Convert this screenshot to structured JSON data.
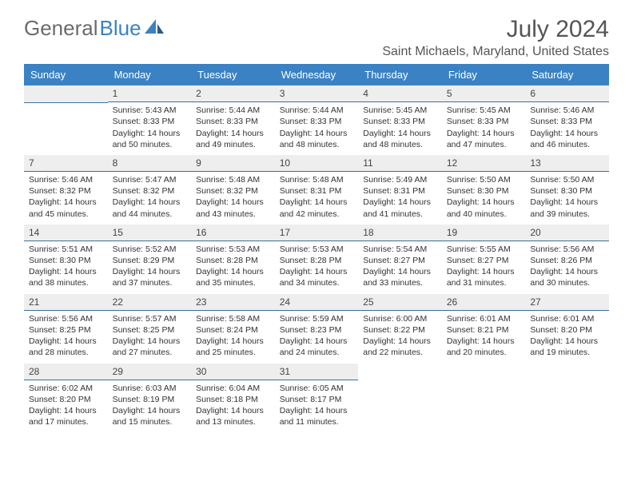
{
  "logo": {
    "text_gray": "General",
    "text_blue": "Blue"
  },
  "title": "July 2024",
  "location": "Saint Michaels, Maryland, United States",
  "columns": [
    "Sunday",
    "Monday",
    "Tuesday",
    "Wednesday",
    "Thursday",
    "Friday",
    "Saturday"
  ],
  "colors": {
    "header_bg": "#3b82c4",
    "header_text": "#ffffff",
    "daynum_bg": "#eeeeee",
    "daynum_border": "#3b6fa0",
    "logo_gray": "#6b6b6b",
    "logo_blue": "#3b82c4"
  },
  "weeks": [
    [
      {
        "empty": true
      },
      {
        "n": "1",
        "sr": "5:43 AM",
        "ss": "8:33 PM",
        "dl": "14 hours and 50 minutes."
      },
      {
        "n": "2",
        "sr": "5:44 AM",
        "ss": "8:33 PM",
        "dl": "14 hours and 49 minutes."
      },
      {
        "n": "3",
        "sr": "5:44 AM",
        "ss": "8:33 PM",
        "dl": "14 hours and 48 minutes."
      },
      {
        "n": "4",
        "sr": "5:45 AM",
        "ss": "8:33 PM",
        "dl": "14 hours and 48 minutes."
      },
      {
        "n": "5",
        "sr": "5:45 AM",
        "ss": "8:33 PM",
        "dl": "14 hours and 47 minutes."
      },
      {
        "n": "6",
        "sr": "5:46 AM",
        "ss": "8:33 PM",
        "dl": "14 hours and 46 minutes."
      }
    ],
    [
      {
        "n": "7",
        "sr": "5:46 AM",
        "ss": "8:32 PM",
        "dl": "14 hours and 45 minutes."
      },
      {
        "n": "8",
        "sr": "5:47 AM",
        "ss": "8:32 PM",
        "dl": "14 hours and 44 minutes."
      },
      {
        "n": "9",
        "sr": "5:48 AM",
        "ss": "8:32 PM",
        "dl": "14 hours and 43 minutes."
      },
      {
        "n": "10",
        "sr": "5:48 AM",
        "ss": "8:31 PM",
        "dl": "14 hours and 42 minutes."
      },
      {
        "n": "11",
        "sr": "5:49 AM",
        "ss": "8:31 PM",
        "dl": "14 hours and 41 minutes."
      },
      {
        "n": "12",
        "sr": "5:50 AM",
        "ss": "8:30 PM",
        "dl": "14 hours and 40 minutes."
      },
      {
        "n": "13",
        "sr": "5:50 AM",
        "ss": "8:30 PM",
        "dl": "14 hours and 39 minutes."
      }
    ],
    [
      {
        "n": "14",
        "sr": "5:51 AM",
        "ss": "8:30 PM",
        "dl": "14 hours and 38 minutes."
      },
      {
        "n": "15",
        "sr": "5:52 AM",
        "ss": "8:29 PM",
        "dl": "14 hours and 37 minutes."
      },
      {
        "n": "16",
        "sr": "5:53 AM",
        "ss": "8:28 PM",
        "dl": "14 hours and 35 minutes."
      },
      {
        "n": "17",
        "sr": "5:53 AM",
        "ss": "8:28 PM",
        "dl": "14 hours and 34 minutes."
      },
      {
        "n": "18",
        "sr": "5:54 AM",
        "ss": "8:27 PM",
        "dl": "14 hours and 33 minutes."
      },
      {
        "n": "19",
        "sr": "5:55 AM",
        "ss": "8:27 PM",
        "dl": "14 hours and 31 minutes."
      },
      {
        "n": "20",
        "sr": "5:56 AM",
        "ss": "8:26 PM",
        "dl": "14 hours and 30 minutes."
      }
    ],
    [
      {
        "n": "21",
        "sr": "5:56 AM",
        "ss": "8:25 PM",
        "dl": "14 hours and 28 minutes."
      },
      {
        "n": "22",
        "sr": "5:57 AM",
        "ss": "8:25 PM",
        "dl": "14 hours and 27 minutes."
      },
      {
        "n": "23",
        "sr": "5:58 AM",
        "ss": "8:24 PM",
        "dl": "14 hours and 25 minutes."
      },
      {
        "n": "24",
        "sr": "5:59 AM",
        "ss": "8:23 PM",
        "dl": "14 hours and 24 minutes."
      },
      {
        "n": "25",
        "sr": "6:00 AM",
        "ss": "8:22 PM",
        "dl": "14 hours and 22 minutes."
      },
      {
        "n": "26",
        "sr": "6:01 AM",
        "ss": "8:21 PM",
        "dl": "14 hours and 20 minutes."
      },
      {
        "n": "27",
        "sr": "6:01 AM",
        "ss": "8:20 PM",
        "dl": "14 hours and 19 minutes."
      }
    ],
    [
      {
        "n": "28",
        "sr": "6:02 AM",
        "ss": "8:20 PM",
        "dl": "14 hours and 17 minutes."
      },
      {
        "n": "29",
        "sr": "6:03 AM",
        "ss": "8:19 PM",
        "dl": "14 hours and 15 minutes."
      },
      {
        "n": "30",
        "sr": "6:04 AM",
        "ss": "8:18 PM",
        "dl": "14 hours and 13 minutes."
      },
      {
        "n": "31",
        "sr": "6:05 AM",
        "ss": "8:17 PM",
        "dl": "14 hours and 11 minutes."
      },
      {
        "empty": true
      },
      {
        "empty": true
      },
      {
        "empty": true
      }
    ]
  ],
  "labels": {
    "sunrise": "Sunrise:",
    "sunset": "Sunset:",
    "daylight": "Daylight:"
  }
}
